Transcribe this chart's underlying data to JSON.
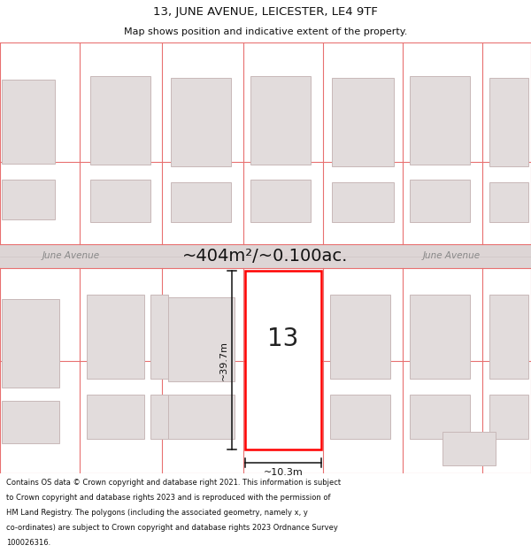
{
  "title_line1": "13, JUNE AVENUE, LEICESTER, LE4 9TF",
  "title_line2": "Map shows position and indicative extent of the property.",
  "area_label": "~404m²/~0.100ac.",
  "street_label": "June Avenue",
  "property_number": "13",
  "dim_height": "~39.7m",
  "dim_width": "~10.3m",
  "footer_lines": [
    "Contains OS data © Crown copyright and database right 2021. This information is subject",
    "to Crown copyright and database rights 2023 and is reproduced with the permission of",
    "HM Land Registry. The polygons (including the associated geometry, namely x, y",
    "co-ordinates) are subject to Crown copyright and database rights 2023 Ordnance Survey",
    "100026316."
  ],
  "bg_color": "#ffffff",
  "map_bg": "#f2eded",
  "building_fill": "#e2dcdc",
  "building_edge": "#c8b8b8",
  "highlight_fill": "#ffffff",
  "highlight_edge": "#ff0000",
  "plot_line_color": "#e87070",
  "road_fill": "#ddd5d5",
  "dimension_color": "#111111",
  "street_text_color": "#888888",
  "area_text_color": "#111111",
  "title_color": "#111111",
  "footer_color": "#111111"
}
